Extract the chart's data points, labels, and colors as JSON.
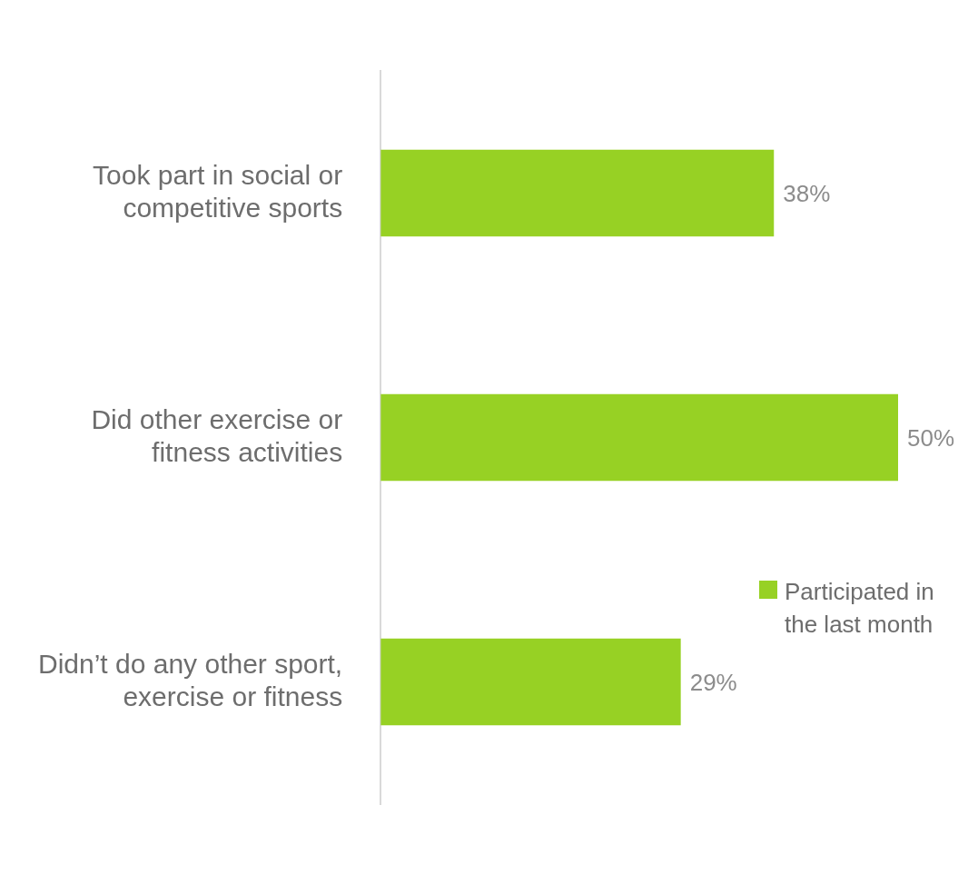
{
  "chart_data": {
    "type": "bar",
    "orientation": "horizontal",
    "categories": [
      "Took part in social or competitive sports",
      "Did other exercise or fitness activities",
      "Didn’t do any other sport, exercise or fitness"
    ],
    "series": [
      {
        "name": "Participated in the last month",
        "color": "#97d124",
        "values": [
          38,
          50,
          29
        ],
        "value_labels": [
          "38%",
          "50%",
          "29%"
        ]
      }
    ],
    "legend": "bottom right",
    "grid": false
  }
}
